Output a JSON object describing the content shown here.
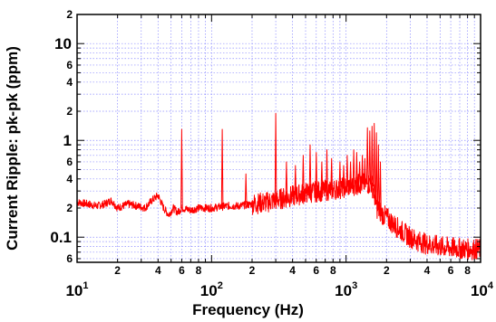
{
  "chart_data": {
    "type": "line",
    "title": "",
    "xlabel": "Frequency (Hz)",
    "ylabel": "Current Ripple: pk-pk (ppm)",
    "x_scale": "log",
    "y_scale": "log",
    "xlim": [
      10,
      10000
    ],
    "ylim": [
      0.055,
      20
    ],
    "grid": "major and minor (dotted blue)",
    "x_major_ticks": [
      10,
      100,
      1000,
      10000
    ],
    "x_major_labels": [
      {
        "base": "10",
        "exp": "1"
      },
      {
        "base": "10",
        "exp": "2"
      },
      {
        "base": "10",
        "exp": "3"
      },
      {
        "base": "10",
        "exp": "4"
      }
    ],
    "x_minor_labeled": [
      {
        "value": 20,
        "label": "2"
      },
      {
        "value": 40,
        "label": "4"
      },
      {
        "value": 60,
        "label": "6"
      },
      {
        "value": 80,
        "label": "8"
      },
      {
        "value": 200,
        "label": "2"
      },
      {
        "value": 400,
        "label": "4"
      },
      {
        "value": 600,
        "label": "6"
      },
      {
        "value": 800,
        "label": "8"
      },
      {
        "value": 2000,
        "label": "2"
      },
      {
        "value": 4000,
        "label": "4"
      },
      {
        "value": 6000,
        "label": "6"
      },
      {
        "value": 8000,
        "label": "8"
      }
    ],
    "y_major_ticks": [
      {
        "value": 0.1,
        "label": "0.1"
      },
      {
        "value": 1,
        "label": "1"
      },
      {
        "value": 10,
        "label": "10"
      }
    ],
    "y_minor_labeled": [
      {
        "value": 0.06,
        "label": "6"
      },
      {
        "value": 0.2,
        "label": "2"
      },
      {
        "value": 0.4,
        "label": "4"
      },
      {
        "value": 0.6,
        "label": "6"
      },
      {
        "value": 2,
        "label": "2"
      },
      {
        "value": 4,
        "label": "4"
      },
      {
        "value": 6,
        "label": "6"
      },
      {
        "value": 20,
        "label": "2"
      }
    ],
    "series": [
      {
        "color": "#ff0000",
        "baseline": [
          [
            10,
            0.23
          ],
          [
            12,
            0.22
          ],
          [
            14,
            0.21
          ],
          [
            16,
            0.22
          ],
          [
            18,
            0.24
          ],
          [
            20,
            0.2
          ],
          [
            24,
            0.22
          ],
          [
            28,
            0.21
          ],
          [
            32,
            0.2
          ],
          [
            36,
            0.24
          ],
          [
            40,
            0.27
          ],
          [
            44,
            0.2
          ],
          [
            48,
            0.17
          ],
          [
            52,
            0.2
          ],
          [
            56,
            0.18
          ],
          [
            60,
            0.2
          ],
          [
            70,
            0.19
          ],
          [
            80,
            0.2
          ],
          [
            100,
            0.2
          ],
          [
            130,
            0.21
          ],
          [
            160,
            0.21
          ],
          [
            200,
            0.22
          ],
          [
            260,
            0.23
          ],
          [
            330,
            0.25
          ],
          [
            420,
            0.27
          ],
          [
            530,
            0.29
          ],
          [
            660,
            0.3
          ],
          [
            800,
            0.31
          ],
          [
            1000,
            0.33
          ],
          [
            1200,
            0.35
          ],
          [
            1400,
            0.36
          ],
          [
            1550,
            0.35
          ],
          [
            1600,
            0.3
          ],
          [
            1650,
            0.25
          ],
          [
            1700,
            0.2
          ],
          [
            1800,
            0.18
          ],
          [
            2000,
            0.16
          ],
          [
            2200,
            0.14
          ],
          [
            2500,
            0.12
          ],
          [
            3000,
            0.1
          ],
          [
            3500,
            0.09
          ],
          [
            4000,
            0.085
          ],
          [
            5000,
            0.08
          ],
          [
            6000,
            0.078
          ],
          [
            8000,
            0.075
          ],
          [
            10000,
            0.075
          ]
        ],
        "peaks": [
          [
            60,
            1.3
          ],
          [
            120,
            1.3
          ],
          [
            180,
            0.45
          ],
          [
            300,
            1.9
          ],
          [
            360,
            0.6
          ],
          [
            420,
            0.55
          ],
          [
            480,
            0.7
          ],
          [
            540,
            0.9
          ],
          [
            600,
            0.75
          ],
          [
            660,
            0.6
          ],
          [
            720,
            0.8
          ],
          [
            780,
            0.65
          ],
          [
            900,
            0.6
          ],
          [
            960,
            0.55
          ],
          [
            1020,
            0.7
          ],
          [
            1080,
            0.6
          ],
          [
            1140,
            0.8
          ],
          [
            1200,
            0.75
          ],
          [
            1260,
            0.6
          ],
          [
            1320,
            0.7
          ],
          [
            1380,
            0.65
          ],
          [
            1440,
            1.35
          ],
          [
            1500,
            1.25
          ],
          [
            1560,
            1.4
          ],
          [
            1620,
            1.5
          ],
          [
            1680,
            1.2
          ],
          [
            1740,
            0.9
          ],
          [
            1800,
            0.6
          ]
        ]
      }
    ]
  }
}
